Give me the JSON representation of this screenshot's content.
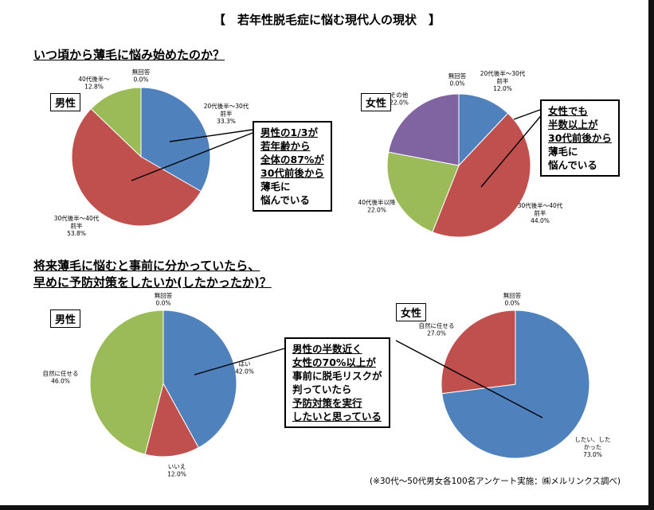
{
  "title": "【　若年性脱毛症に悩む現代人の現状　】",
  "sections": {
    "q1": "いつ頃から薄毛に悩み始めたのか？",
    "q2_line1": "将来薄毛に悩むと事前に分かっていたら、",
    "q2_line2": "早めに予防対策をしたいか(したかったか)？"
  },
  "tags": {
    "male": "男性",
    "female": "女性"
  },
  "callouts": {
    "c1": [
      {
        "text": "男性の1/3が",
        "u": true
      },
      {
        "text": "若年齢から",
        "u": true
      },
      {
        "text": "全体の87%が",
        "u": true
      },
      {
        "text": "30代前後から",
        "u": true
      },
      {
        "text": "薄毛に",
        "u": false
      },
      {
        "text": "悩んでいる",
        "u": false
      }
    ],
    "c2": [
      {
        "text": "女性でも",
        "u": true
      },
      {
        "text": "半数以上が",
        "u": true
      },
      {
        "text": "30代前後から",
        "u": true
      },
      {
        "text": "薄毛に",
        "u": false
      },
      {
        "text": "悩んでいる",
        "u": false
      }
    ],
    "c3": [
      {
        "text": "男性の半数近く",
        "u": true
      },
      {
        "text": "女性の70%以上が",
        "u": true
      },
      {
        "text": "事前に脱毛リスクが",
        "u": false
      },
      {
        "text": "判っていたら",
        "u": false
      },
      {
        "text": "予防対策を実行",
        "u": true
      },
      {
        "text": "したいと思っている",
        "u": true
      }
    ]
  },
  "footnote": "(※30代～50代男女各100名アンケート実施：㈱メルリンクス調べ)",
  "colors": {
    "blue": "#4f81bd",
    "red": "#c0504d",
    "green": "#9bbb59",
    "purple": "#8064a2"
  },
  "chart_data": [
    {
      "type": "pie",
      "group": "男性",
      "question": "いつ頃から薄毛に悩み始めたのか？",
      "slices": [
        {
          "label": [
            "無回答"
          ],
          "value": 0.0,
          "text": "0.0%",
          "color": "#4f81bd"
        },
        {
          "label": [
            "20代後半～30代",
            "前半"
          ],
          "value": 33.3,
          "text": "33.3%",
          "color": "#4f81bd"
        },
        {
          "label": [
            "30代後半～40代",
            "前半"
          ],
          "value": 53.8,
          "text": "53.8%",
          "color": "#c0504d"
        },
        {
          "label": [
            "40代後半～"
          ],
          "value": 12.8,
          "text": "12.8%",
          "color": "#9bbb59"
        }
      ]
    },
    {
      "type": "pie",
      "group": "女性",
      "question": "いつ頃から薄毛に悩み始めたのか？",
      "slices": [
        {
          "label": [
            "無回答"
          ],
          "value": 0.0,
          "text": "0.0%",
          "color": "#4f81bd"
        },
        {
          "label": [
            "20代後半～30代",
            "前半"
          ],
          "value": 12.0,
          "text": "12.0%",
          "color": "#4f81bd"
        },
        {
          "label": [
            "30代後半～40代",
            "前半"
          ],
          "value": 44.0,
          "text": "44.0%",
          "color": "#c0504d"
        },
        {
          "label": [
            "40代後半以降"
          ],
          "value": 22.0,
          "text": "22.0%",
          "color": "#9bbb59"
        },
        {
          "label": [
            "その他"
          ],
          "value": 22.0,
          "text": "22.0%",
          "color": "#8064a2"
        }
      ]
    },
    {
      "type": "pie",
      "group": "男性",
      "question": "将来薄毛に悩むと事前に分かっていたら、早めに予防対策をしたいか(したかったか)？",
      "slices": [
        {
          "label": [
            "無回答"
          ],
          "value": 0.0,
          "text": "0.0%",
          "color": "#4f81bd"
        },
        {
          "label": [
            "はい"
          ],
          "value": 42.0,
          "text": "42.0%",
          "color": "#4f81bd"
        },
        {
          "label": [
            "いいえ"
          ],
          "value": 12.0,
          "text": "12.0%",
          "color": "#c0504d"
        },
        {
          "label": [
            "自然に任せる"
          ],
          "value": 46.0,
          "text": "46.0%",
          "color": "#9bbb59"
        }
      ]
    },
    {
      "type": "pie",
      "group": "女性",
      "question": "将来薄毛に悩むと事前に分かっていたら、早めに予防対策をしたいか(したかったか)？",
      "slices": [
        {
          "label": [
            "無回答"
          ],
          "value": 0.0,
          "text": "0.0%",
          "color": "#4f81bd"
        },
        {
          "label": [
            "したい、した",
            "かった"
          ],
          "value": 73.0,
          "text": "73.0%",
          "color": "#4f81bd"
        },
        {
          "label": [
            "自然に任せる"
          ],
          "value": 27.0,
          "text": "27.0%",
          "color": "#c0504d"
        }
      ]
    }
  ]
}
